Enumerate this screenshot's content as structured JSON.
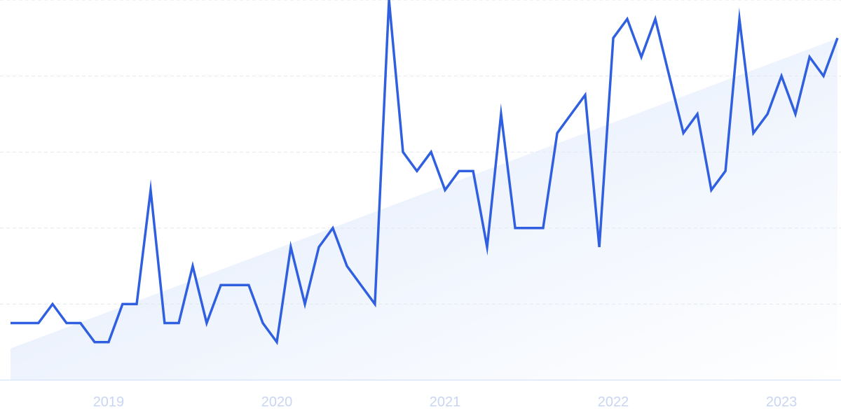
{
  "chart_data": {
    "type": "line",
    "x": [
      2018.417,
      2018.5,
      2018.583,
      2018.667,
      2018.75,
      2018.833,
      2018.917,
      2019,
      2019.083,
      2019.167,
      2019.25,
      2019.333,
      2019.417,
      2019.5,
      2019.583,
      2019.667,
      2019.75,
      2019.833,
      2019.917,
      2020,
      2020.083,
      2020.167,
      2020.25,
      2020.333,
      2020.417,
      2020.5,
      2020.583,
      2020.667,
      2020.75,
      2020.833,
      2020.917,
      2021,
      2021.083,
      2021.167,
      2021.25,
      2021.333,
      2021.417,
      2021.5,
      2021.583,
      2021.667,
      2021.75,
      2021.833,
      2021.917,
      2022,
      2022.083,
      2022.167,
      2022.25,
      2022.333,
      2022.417,
      2022.5,
      2022.583,
      2022.667,
      2022.75,
      2022.833,
      2022.917,
      2023,
      2023.083,
      2023.167,
      2023.25,
      2023.333
    ],
    "values": [
      15,
      15,
      15,
      20,
      15,
      15,
      10,
      10,
      20,
      20,
      50,
      15,
      15,
      30,
      15,
      25,
      25,
      25,
      15,
      10,
      35,
      20,
      35,
      40,
      30,
      25,
      20,
      100,
      60,
      55,
      60,
      50,
      55,
      55,
      35,
      70,
      40,
      40,
      40,
      65,
      70,
      75,
      35,
      90,
      95,
      85,
      95,
      80,
      65,
      70,
      50,
      55,
      95,
      65,
      70,
      80,
      70,
      85,
      80,
      90
    ],
    "color": "#3060e0",
    "trend": {
      "x": [
        2018.417,
        2023.333
      ],
      "values": [
        8.3,
        89.9
      ],
      "color": "#e3edfb"
    },
    "xlim": [
      2018.417,
      2023.333
    ],
    "xticks": [
      2019,
      2020,
      2021,
      2022,
      2023
    ],
    "ylim": [
      0,
      100
    ],
    "yticks": [
      0,
      20,
      40,
      60,
      80,
      100
    ],
    "grid": true
  }
}
